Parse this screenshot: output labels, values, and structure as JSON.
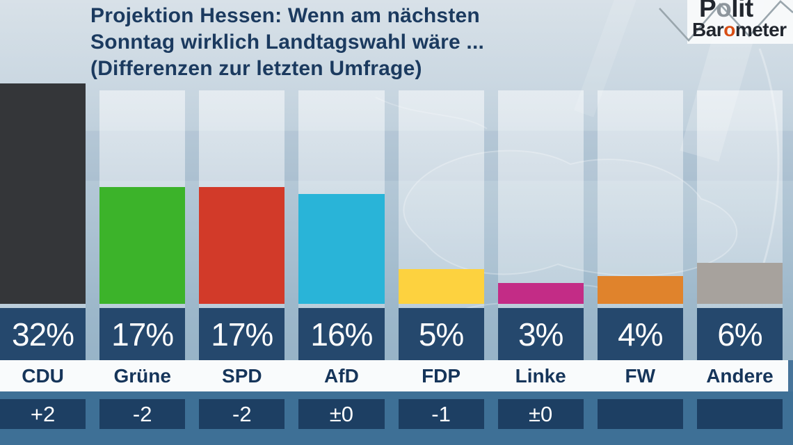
{
  "header": {
    "title_lines": [
      "Projektion Hessen: Wenn am nächsten",
      "Sonntag wirklich Landtagswahl wäre ...",
      "(Differenzen zur letzten Umfrage)"
    ],
    "logo": {
      "line1_pre": "P",
      "line1_o": "o",
      "line1_post": "lit",
      "line2_pre": "Bar",
      "line2_o": "o",
      "line2_post": "meter"
    }
  },
  "chart_data": {
    "type": "bar",
    "title": "Projektion Hessen: Wenn am nächsten Sonntag wirklich Landtagswahl wäre ... (Differenzen zur letzten Umfrage)",
    "xlabel": "",
    "ylabel": "",
    "ylim": [
      0,
      32
    ],
    "grid": false,
    "legend": false,
    "categories": [
      "CDU",
      "Grüne",
      "SPD",
      "AfD",
      "FDP",
      "Linke",
      "FW",
      "Andere"
    ],
    "values": [
      32,
      17,
      17,
      16,
      5,
      3,
      4,
      6
    ],
    "diffs": [
      "+2",
      "-2",
      "-2",
      "±0",
      "-1",
      "±0",
      "",
      ""
    ],
    "bars": [
      {
        "party": "CDU",
        "value": 32,
        "value_label": "32%",
        "diff": "+2",
        "color": "#343639"
      },
      {
        "party": "Grüne",
        "value": 17,
        "value_label": "17%",
        "diff": "-2",
        "color": "#3cb32a"
      },
      {
        "party": "SPD",
        "value": 17,
        "value_label": "17%",
        "diff": "-2",
        "color": "#d23a29"
      },
      {
        "party": "AfD",
        "value": 16,
        "value_label": "16%",
        "diff": "±0",
        "color": "#29b4d8"
      },
      {
        "party": "FDP",
        "value": 5,
        "value_label": "5%",
        "diff": "-1",
        "color": "#fdd23f"
      },
      {
        "party": "Linke",
        "value": 3,
        "value_label": "3%",
        "diff": "±0",
        "color": "#c32c86"
      },
      {
        "party": "FW",
        "value": 4,
        "value_label": "4%",
        "diff": "",
        "color": "#e0832c"
      },
      {
        "party": "Andere",
        "value": 6,
        "value_label": "6%",
        "diff": "",
        "color": "#a7a29d"
      }
    ]
  },
  "colors": {
    "title_navy": "#1b3a5f",
    "value_box_navy": "#25486d",
    "diff_box_navy": "#1d3f63",
    "diff_band_steel": "#3e7096",
    "label_band_white": "#f9fbfc",
    "party_label_navy": "#16355a",
    "logo_o_gray": "#8d959c",
    "logo_o_orange": "#d84e15"
  }
}
